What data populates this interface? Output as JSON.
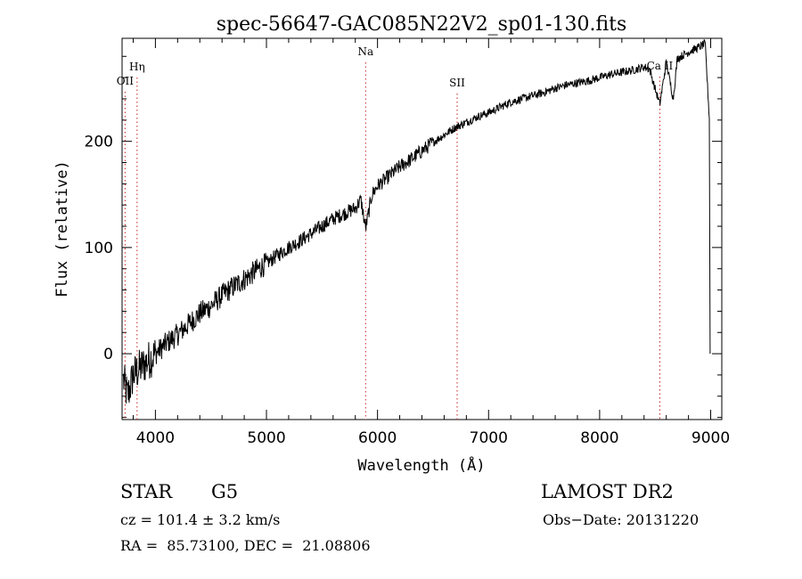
{
  "chart_data": {
    "type": "line",
    "title": "spec-56647-GAC085N22V2_sp01-130.fits",
    "xlabel": "Wavelength (Å)",
    "ylabel": "Flux (relative)",
    "xlim": [
      3700,
      9100
    ],
    "ylim": [
      -62,
      297
    ],
    "x_ticks": [
      4000,
      5000,
      6000,
      7000,
      8000,
      9000
    ],
    "x_tick_labels": [
      "4000",
      "5000",
      "6000",
      "7000",
      "8000",
      "9000"
    ],
    "y_ticks": [
      0,
      100,
      200
    ],
    "y_tick_labels": [
      "0",
      "100",
      "200"
    ],
    "grid": false,
    "line_color": "#000000",
    "marker_color": "#cc2222",
    "series": [
      {
        "x": [
          3700,
          3750,
          3800,
          3850,
          3900,
          3950,
          4000,
          4100,
          4200,
          4300,
          4400,
          4500,
          4600,
          4700,
          4800,
          4900,
          5000,
          5100,
          5200,
          5300,
          5400,
          5500,
          5600,
          5700,
          5800,
          5850,
          5893,
          5950,
          6000,
          6100,
          6200,
          6300,
          6400,
          6500,
          6600,
          6700,
          6800,
          6900,
          7000,
          7100,
          7200,
          7300,
          7400,
          7500,
          7600,
          7700,
          7800,
          7900,
          8000,
          8100,
          8200,
          8300,
          8400,
          8450,
          8498,
          8542,
          8600,
          8662,
          8700,
          8800,
          8900,
          8950,
          9000
        ],
        "y": [
          -20,
          -40,
          -20,
          -15,
          -10,
          -5,
          0,
          10,
          18,
          28,
          38,
          45,
          55,
          63,
          70,
          78,
          85,
          93,
          100,
          106,
          113,
          120,
          127,
          132,
          137,
          145,
          118,
          150,
          158,
          167,
          176,
          183,
          191,
          199,
          206,
          213,
          218,
          223,
          227,
          232,
          237,
          240,
          243,
          246,
          250,
          253,
          255,
          257,
          260,
          263,
          265,
          267,
          270,
          268,
          250,
          235,
          275,
          240,
          278,
          284,
          289,
          292,
          200
        ]
      }
    ],
    "line_markers": [
      {
        "label": "OII",
        "x": 3727
      },
      {
        "label": "Hη",
        "x": 3835
      },
      {
        "label": "Na",
        "x": 5893
      },
      {
        "label": "SII",
        "x": 6717
      },
      {
        "label": "Ca II",
        "x": 8542
      }
    ]
  },
  "info": {
    "object_class": "STAR",
    "subclass": "G5",
    "redshift": "cz = 101.4 ± 3.2 km/s",
    "coords": "RA =  85.73100, DEC =  21.08806",
    "survey": "LAMOST DR2",
    "obs_date": "Obs−Date: 20131220"
  }
}
